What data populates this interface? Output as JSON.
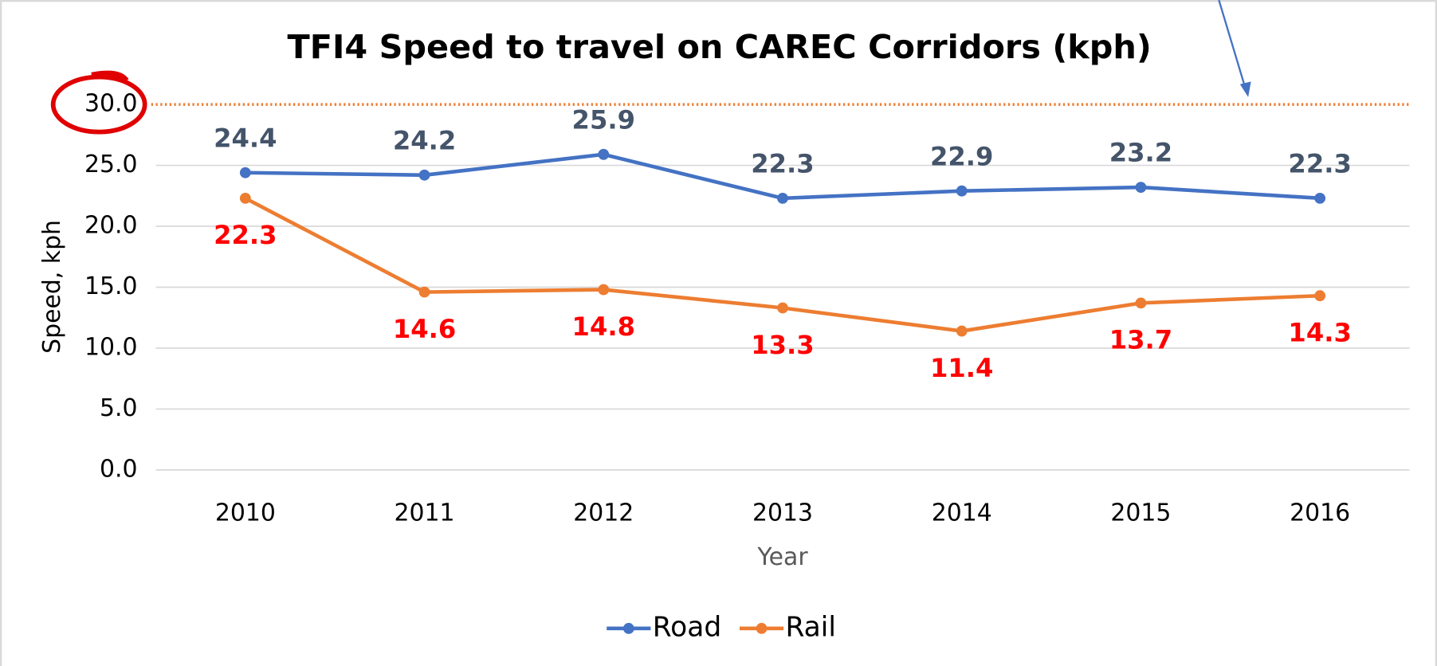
{
  "chart_data": {
    "type": "line",
    "title": "TFI4 Speed to travel on CAREC Corridors (kph)",
    "x_label": "Year",
    "y_label": "Speed, kph",
    "categories": [
      "2010",
      "2011",
      "2012",
      "2013",
      "2014",
      "2015",
      "2016"
    ],
    "series": [
      {
        "name": "Road",
        "color": "#4472c4",
        "label_color": "#44546a",
        "values": [
          24.4,
          24.2,
          25.9,
          22.3,
          22.9,
          23.2,
          22.3
        ]
      },
      {
        "name": "Rail",
        "color": "#ed7d31",
        "label_color": "#ff0000",
        "values": [
          22.3,
          14.6,
          14.8,
          13.3,
          11.4,
          13.7,
          14.3
        ]
      }
    ],
    "ylim": [
      0,
      30
    ],
    "yticks": [
      {
        "value": 0,
        "label": "0.0"
      },
      {
        "value": 5,
        "label": "5.0"
      },
      {
        "value": 10,
        "label": "10.0"
      },
      {
        "value": 15,
        "label": "15.0"
      },
      {
        "value": 20,
        "label": "20.0"
      },
      {
        "value": 25,
        "label": "25.0"
      },
      {
        "value": 30,
        "label": "30.0"
      }
    ],
    "grid": true,
    "legend": "bottom"
  }
}
